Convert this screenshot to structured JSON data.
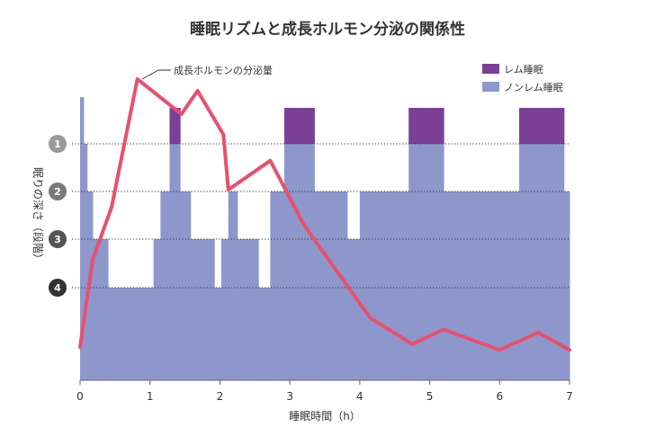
{
  "chart_data": {
    "type": "area",
    "title": "睡眠リズムと成長ホルモン分泌の関係性",
    "xlabel": "睡眠時間（h）",
    "ylabel": "眠りの深さ（段階）",
    "xlim": [
      0,
      7
    ],
    "x_ticks": [
      "0",
      "1",
      "2",
      "3",
      "4",
      "5",
      "6",
      "7"
    ],
    "y_stage_labels": [
      "1",
      "2",
      "3",
      "4"
    ],
    "grid_dotted": true,
    "legend": {
      "position": "top-right",
      "entries": [
        {
          "name": "レム睡眠",
          "color": "#7b3f98"
        },
        {
          "name": "ノンレム睡眠",
          "color": "#8e97cc"
        }
      ]
    },
    "sleep_stages": [
      {
        "start": 0.0,
        "end": 0.05,
        "level": 0.7
      },
      {
        "start": 0.05,
        "end": 0.1,
        "level": 1
      },
      {
        "start": 0.1,
        "end": 0.18,
        "level": 2
      },
      {
        "start": 0.18,
        "end": 0.4,
        "level": 3
      },
      {
        "start": 0.4,
        "end": 1.05,
        "level": 4
      },
      {
        "start": 1.05,
        "end": 1.15,
        "level": 3
      },
      {
        "start": 1.15,
        "end": 1.28,
        "level": 2
      },
      {
        "start": 1.28,
        "end": 1.43,
        "level": "rem"
      },
      {
        "start": 1.43,
        "end": 1.58,
        "level": 2
      },
      {
        "start": 1.58,
        "end": 1.92,
        "level": 3
      },
      {
        "start": 1.92,
        "end": 2.02,
        "level": 4
      },
      {
        "start": 2.02,
        "end": 2.12,
        "level": 3
      },
      {
        "start": 2.12,
        "end": 2.25,
        "level": 2
      },
      {
        "start": 2.25,
        "end": 2.55,
        "level": 3
      },
      {
        "start": 2.55,
        "end": 2.72,
        "level": 4
      },
      {
        "start": 2.72,
        "end": 2.92,
        "level": 2
      },
      {
        "start": 2.92,
        "end": 3.35,
        "level": "rem"
      },
      {
        "start": 3.35,
        "end": 3.82,
        "level": 2
      },
      {
        "start": 3.82,
        "end": 4.0,
        "level": 3
      },
      {
        "start": 4.0,
        "end": 4.7,
        "level": 2
      },
      {
        "start": 4.7,
        "end": 5.2,
        "level": "rem"
      },
      {
        "start": 5.2,
        "end": 6.28,
        "level": 2
      },
      {
        "start": 6.28,
        "end": 6.92,
        "level": "rem"
      },
      {
        "start": 6.92,
        "end": 7.0,
        "level": 2
      }
    ],
    "series": [
      {
        "name": "成長ホルモンの分泌量",
        "color": "#e8506e",
        "x": [
          0.0,
          0.18,
          0.45,
          0.82,
          1.45,
          1.68,
          2.05,
          2.12,
          2.72,
          3.2,
          4.15,
          4.75,
          5.2,
          6.0,
          6.55,
          7.0
        ],
        "y": [
          0.08,
          0.38,
          0.56,
          1.0,
          0.88,
          0.96,
          0.81,
          0.62,
          0.72,
          0.5,
          0.18,
          0.09,
          0.14,
          0.07,
          0.13,
          0.07
        ]
      }
    ]
  }
}
